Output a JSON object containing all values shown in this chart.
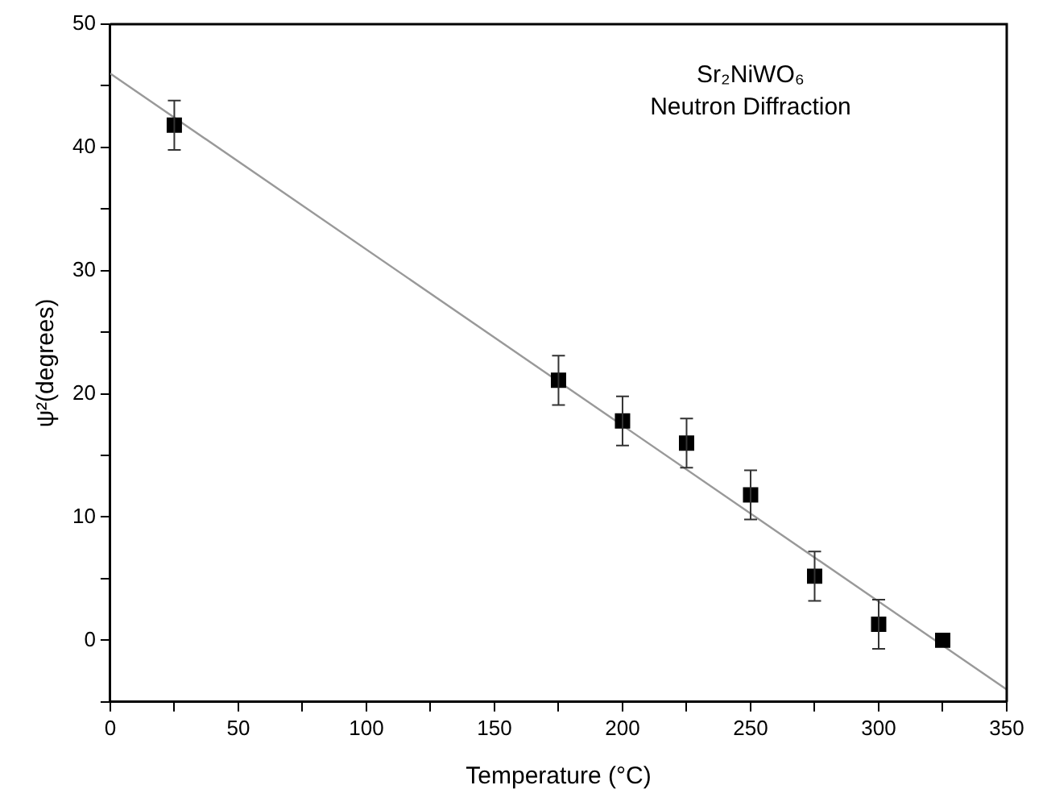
{
  "chart_data": {
    "type": "scatter",
    "xlabel": "Temperature (°C)",
    "ylabel": "ψ²(degrees)",
    "annotations": [
      "Sr₂NiWO₆",
      "Neutron Diffraction"
    ],
    "xlim": [
      0,
      350
    ],
    "xticks": [
      0,
      {
        "value": 25,
        "label": null
      },
      50,
      {
        "value": 75,
        "label": null
      },
      100,
      {
        "value": 125,
        "label": null
      },
      150,
      {
        "value": 175,
        "label": null
      },
      200,
      {
        "value": 225,
        "label": null
      },
      250,
      {
        "value": 275,
        "label": null
      },
      300,
      {
        "value": 325,
        "label": null
      },
      350
    ],
    "ylim": [
      -5,
      50
    ],
    "yticks": [
      {
        "value": -5,
        "label": null
      },
      0,
      {
        "value": 5,
        "label": null
      },
      10,
      {
        "value": 15,
        "label": null
      },
      20,
      {
        "value": 25,
        "label": null
      },
      30,
      {
        "value": 35,
        "label": null
      },
      40,
      {
        "value": 45,
        "label": null
      },
      50
    ],
    "grid": false,
    "legend": false,
    "series": [
      {
        "color": "#000000",
        "marker": "square",
        "x": [
          25,
          175,
          200,
          225,
          250,
          275,
          300,
          325
        ],
        "values": [
          41.8,
          21.1,
          17.8,
          16.0,
          11.8,
          5.2,
          1.3,
          0
        ],
        "errors": [
          2,
          2,
          2,
          2,
          2,
          2,
          2,
          null
        ]
      },
      {
        "type": "line",
        "color": "#999999",
        "marker": "none",
        "line_style": "solid",
        "x": [
          0,
          350
        ],
        "values": [
          46,
          -4
        ]
      }
    ]
  }
}
